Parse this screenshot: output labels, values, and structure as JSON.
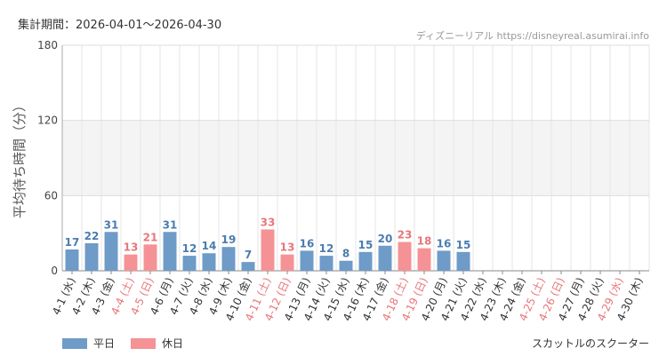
{
  "header": {
    "period": "集計期間：2026-04-01～2026-04-30",
    "source": "ディズニーリアル https://disneyreal.asumirai.info"
  },
  "footer": {
    "attraction": "スカットルのスクーター"
  },
  "colors": {
    "weekday": "#6e9bc8",
    "holiday": "#f59295",
    "weekday_label": "#4a7cb0",
    "holiday_label": "#e8767a"
  },
  "chart_data": {
    "type": "bar",
    "ylabel": "平均待ち時間（分）",
    "ylim": [
      0,
      180
    ],
    "yticks": [
      0,
      60,
      120,
      180
    ],
    "grid": true,
    "legend_position": "bottom-left",
    "series": [
      {
        "name": "平日",
        "color": "#6e9bc8"
      },
      {
        "name": "休日",
        "color": "#f59295"
      }
    ],
    "categories": [
      "4-1 (水)",
      "4-2 (木)",
      "4-3 (金)",
      "4-4 (土)",
      "4-5 (日)",
      "4-6 (月)",
      "4-7 (火)",
      "4-8 (水)",
      "4-9 (木)",
      "4-10 (金)",
      "4-11 (土)",
      "4-12 (日)",
      "4-13 (月)",
      "4-14 (火)",
      "4-15 (水)",
      "4-16 (木)",
      "4-17 (金)",
      "4-18 (土)",
      "4-19 (日)",
      "4-20 (月)",
      "4-21 (火)",
      "4-22 (水)",
      "4-23 (木)",
      "4-24 (金)",
      "4-25 (土)",
      "4-26 (日)",
      "4-27 (月)",
      "4-28 (火)",
      "4-29 (水)",
      "4-30 (木)"
    ],
    "values": [
      17,
      22,
      31,
      13,
      21,
      31,
      12,
      14,
      19,
      7,
      33,
      13,
      16,
      12,
      8,
      15,
      20,
      23,
      18,
      16,
      15,
      null,
      null,
      null,
      null,
      null,
      null,
      null,
      null,
      null
    ],
    "holiday": [
      false,
      false,
      false,
      true,
      true,
      false,
      false,
      false,
      false,
      false,
      true,
      true,
      false,
      false,
      false,
      false,
      false,
      true,
      true,
      false,
      false,
      false,
      false,
      false,
      true,
      true,
      false,
      false,
      true,
      false
    ]
  }
}
